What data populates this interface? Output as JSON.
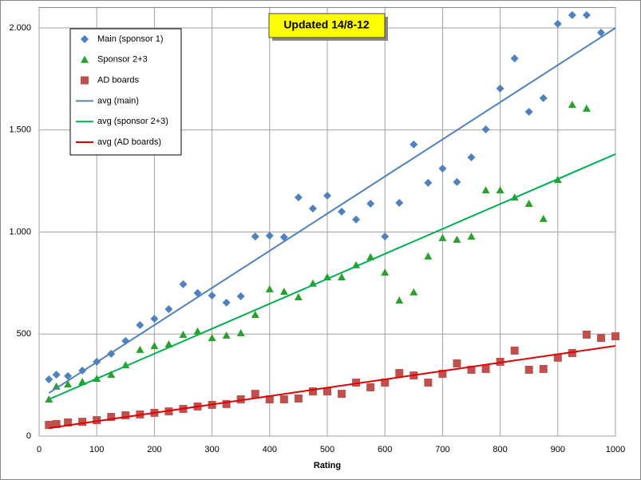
{
  "chart_data": {
    "type": "scatter",
    "annotation": "Updated 14/8-12",
    "x_label": "Rating",
    "xlim": [
      0,
      1000
    ],
    "xticks": [
      0,
      100,
      200,
      300,
      400,
      500,
      600,
      700,
      800,
      900,
      1000
    ],
    "ylim": [
      0,
      2100
    ],
    "yticks": [
      0,
      500,
      {
        "value": 1000,
        "label": "1.000"
      },
      {
        "value": 1500,
        "label": "1.500"
      },
      {
        "value": 2000,
        "label": "2.000"
      }
    ],
    "grid": true,
    "legend": "upper left",
    "series": [
      {
        "name": "Main (sponsor 1)",
        "color": "#4f81bd",
        "marker": "diamond",
        "x": [
          17,
          30,
          50,
          75,
          100,
          125,
          150,
          175,
          200,
          225,
          250,
          275,
          300,
          325,
          350,
          375,
          400,
          425,
          450,
          475,
          500,
          525,
          550,
          575,
          600,
          625,
          650,
          675,
          700,
          725,
          750,
          775,
          800,
          825,
          850,
          875,
          900,
          925,
          950,
          975
        ],
        "values": [
          278,
          301,
          294,
          321,
          364,
          403,
          466,
          544,
          575,
          622,
          744,
          701,
          689,
          654,
          685,
          978,
          982,
          975,
          1170,
          1115,
          1178,
          1100,
          1061,
          1139,
          978,
          1143,
          1429,
          1241,
          1311,
          1245,
          1366,
          1503,
          1703,
          1851,
          1589,
          1656,
          2020,
          2063,
          2063,
          1977
        ]
      },
      {
        "name": "Sponsor 2+3",
        "color": "#2ca02c",
        "marker": "triangle",
        "x": [
          17,
          30,
          50,
          75,
          100,
          125,
          150,
          175,
          200,
          225,
          250,
          275,
          300,
          325,
          350,
          375,
          400,
          425,
          450,
          475,
          500,
          525,
          550,
          575,
          600,
          625,
          650,
          675,
          700,
          725,
          750,
          775,
          800,
          825,
          850,
          875,
          900,
          925,
          950
        ],
        "values": [
          180,
          243,
          254,
          266,
          282,
          301,
          348,
          423,
          442,
          450,
          497,
          513,
          481,
          493,
          505,
          595,
          720,
          708,
          681,
          748,
          779,
          779,
          838,
          877,
          802,
          665,
          705,
          881,
          971,
          963,
          978,
          1205,
          1205,
          1170,
          1139,
          1065,
          1256,
          1624,
          1605
        ]
      },
      {
        "name": "AD boards",
        "color": "#c0504d",
        "marker": "square",
        "x": [
          17,
          30,
          50,
          75,
          100,
          125,
          150,
          175,
          200,
          225,
          250,
          275,
          300,
          325,
          350,
          375,
          400,
          425,
          450,
          475,
          500,
          525,
          550,
          575,
          600,
          625,
          650,
          675,
          700,
          725,
          750,
          775,
          800,
          825,
          850,
          875,
          900,
          925,
          950,
          975,
          1000
        ],
        "values": [
          55,
          59,
          67,
          70,
          78,
          94,
          102,
          106,
          114,
          121,
          133,
          145,
          153,
          157,
          180,
          207,
          180,
          180,
          184,
          219,
          219,
          207,
          262,
          239,
          262,
          309,
          297,
          262,
          305,
          356,
          325,
          329,
          364,
          419,
          325,
          329,
          384,
          407,
          497,
          481,
          489
        ]
      },
      {
        "name": "avg (main)",
        "color": "#4f81bd",
        "marker": "line",
        "x": [
          17,
          1000
        ],
        "values": [
          211,
          2000
        ]
      },
      {
        "name": "avg (sponsor 2+3)",
        "color": "#00b050",
        "marker": "line",
        "x": [
          17,
          1000
        ],
        "values": [
          180,
          1382
        ]
      },
      {
        "name": "avg (AD boards)",
        "color": "#e00000",
        "marker": "line",
        "x": [
          17,
          1000
        ],
        "values": [
          39,
          442
        ]
      }
    ]
  }
}
